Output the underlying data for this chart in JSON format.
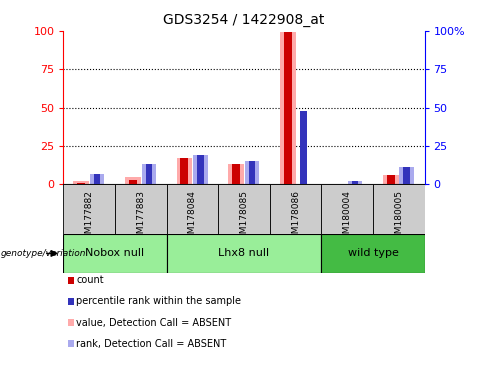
{
  "title": "GDS3254 / 1422908_at",
  "samples": [
    "GSM177882",
    "GSM177883",
    "GSM178084",
    "GSM178085",
    "GSM178086",
    "GSM180004",
    "GSM180005"
  ],
  "red_bars": [
    1,
    3,
    17,
    13,
    99,
    0,
    6
  ],
  "pink_bars": [
    2,
    5,
    17,
    13,
    99,
    0,
    6
  ],
  "blue_bars": [
    7,
    13,
    19,
    15,
    48,
    2,
    11
  ],
  "lightblue_bars": [
    7,
    13,
    19,
    15,
    0,
    2,
    11
  ],
  "group_defs": [
    {
      "label": "Nobox null",
      "start": 0,
      "end": 1,
      "color": "#99ee99"
    },
    {
      "label": "Lhx8 null",
      "start": 2,
      "end": 4,
      "color": "#99ee99"
    },
    {
      "label": "wild type",
      "start": 5,
      "end": 6,
      "color": "#44bb44"
    }
  ],
  "ylim": [
    0,
    100
  ],
  "yticks": [
    0,
    25,
    50,
    75,
    100
  ],
  "red_color": "#cc0000",
  "pink_color": "#ffaaaa",
  "blue_color": "#3333bb",
  "lightblue_color": "#aaaaee",
  "col_bg": "#cccccc",
  "plot_bg": "#ffffff"
}
